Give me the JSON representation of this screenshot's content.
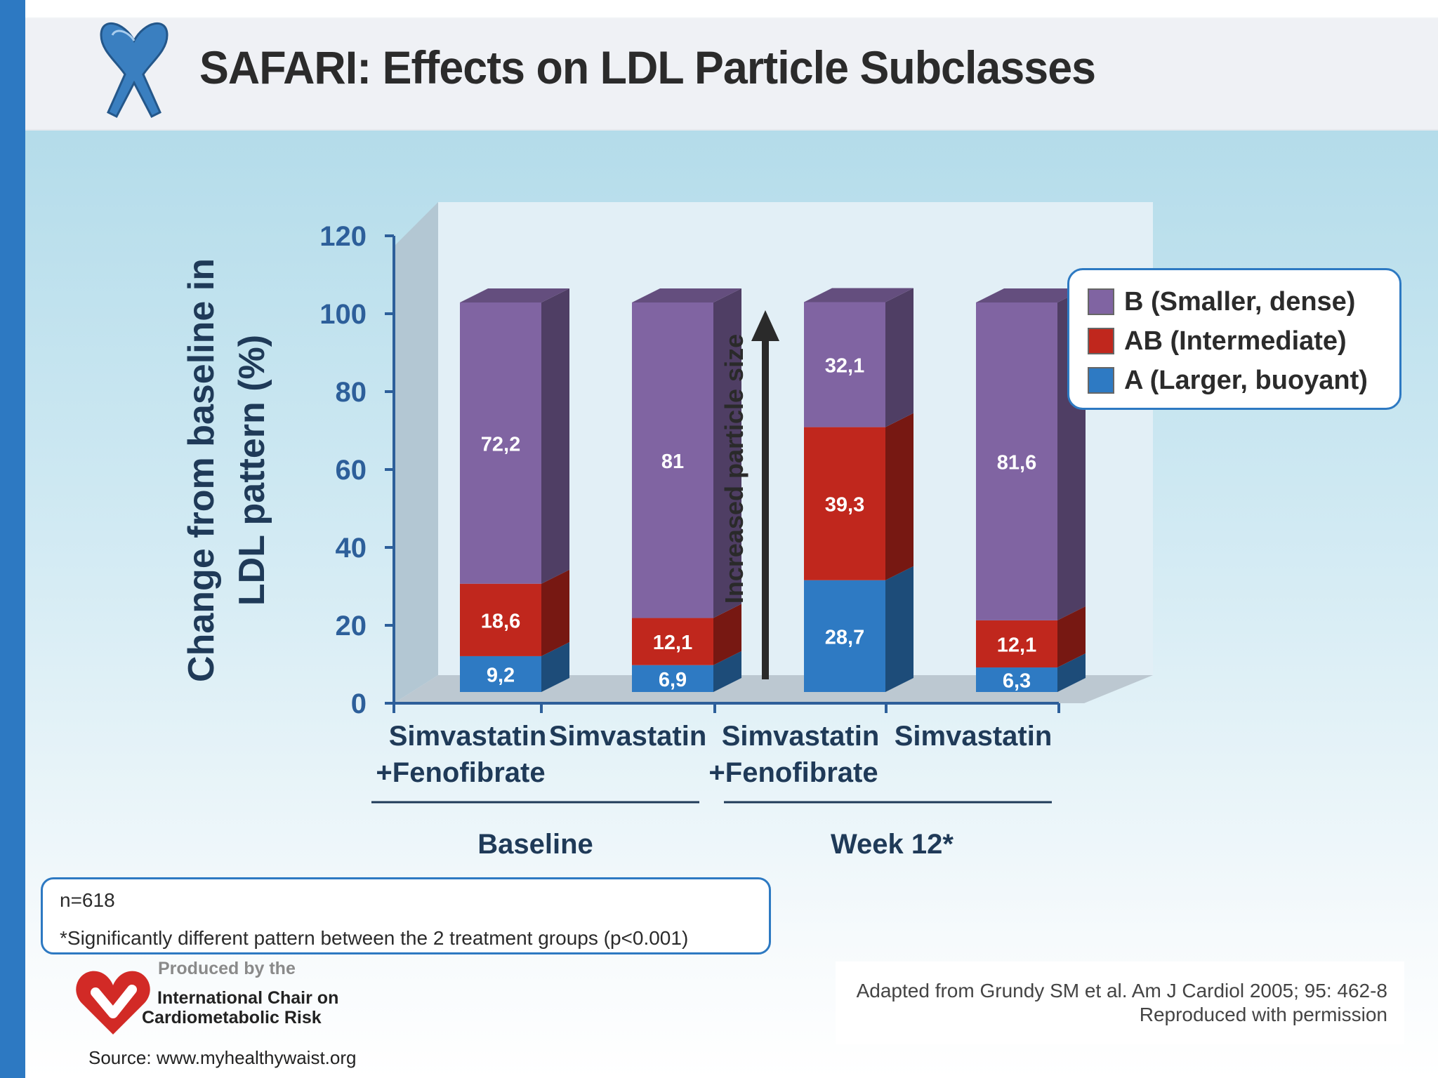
{
  "header": {
    "title": "SAFARI: Effects on LDL Particle Subclasses"
  },
  "colors": {
    "B": "#8064a2",
    "AB": "#c0271d",
    "A": "#2e7ac3",
    "accent": "#2d79c2",
    "axis": "#2d5f9a",
    "dark_text": "#1f3a58"
  },
  "chart_data": {
    "type": "bar",
    "stacked": true,
    "ylabel": "Change from baseline in LDL pattern (%)",
    "ylabel_lines": [
      "Change from baseline in",
      "LDL pattern (%)"
    ],
    "ylim": [
      0,
      120
    ],
    "yticks": [
      "0",
      "20",
      "40",
      "60",
      "80",
      "100",
      "120"
    ],
    "categories": [
      [
        "Simvastatin",
        "+Fenofibrate"
      ],
      [
        "Simvastatin",
        ""
      ],
      [
        "Simvastatin",
        "+Fenofibrate"
      ],
      [
        "Simvastatin",
        ""
      ]
    ],
    "groups": [
      {
        "label": "Baseline",
        "categories": [
          0,
          1
        ]
      },
      {
        "label": "Week 12*",
        "categories": [
          2,
          3
        ]
      }
    ],
    "series": [
      {
        "name": "A (Larger, buoyant)",
        "key": "A",
        "values": [
          9.2,
          6.9,
          28.7,
          6.3
        ],
        "labels": [
          "9,2",
          "6,9",
          "28,7",
          "6,3"
        ]
      },
      {
        "name": "AB (Intermediate)",
        "key": "AB",
        "values": [
          18.6,
          12.1,
          39.3,
          12.1
        ],
        "labels": [
          "18,6",
          "12,1",
          "39,3",
          "12,1"
        ]
      },
      {
        "name": "B (Smaller, dense)",
        "key": "B",
        "values": [
          72.2,
          81,
          32.1,
          81.6
        ],
        "labels": [
          "72,2",
          "81",
          "32,1",
          "81,6"
        ]
      }
    ],
    "legend_position": "top-right",
    "annotation": "Increased particle size"
  },
  "legend": [
    {
      "key": "B",
      "label": "B (Smaller, dense)"
    },
    {
      "key": "AB",
      "label": "AB (Intermediate)"
    },
    {
      "key": "A",
      "label": "A (Larger, buoyant)"
    }
  ],
  "notes": {
    "n": "n=618",
    "significance": "*Significantly different pattern between the 2 treatment groups (p<0.001)"
  },
  "credit": {
    "line1": "Adapted from Grundy SM et al. Am J Cardiol 2005; 95: 462-8",
    "line2": "Reproduced with permission"
  },
  "producer": {
    "small": "Produced by the",
    "line1": "International Chair on",
    "line2": "Cardiometabolic Risk"
  },
  "source": "Source: www.myhealthywaist.org"
}
